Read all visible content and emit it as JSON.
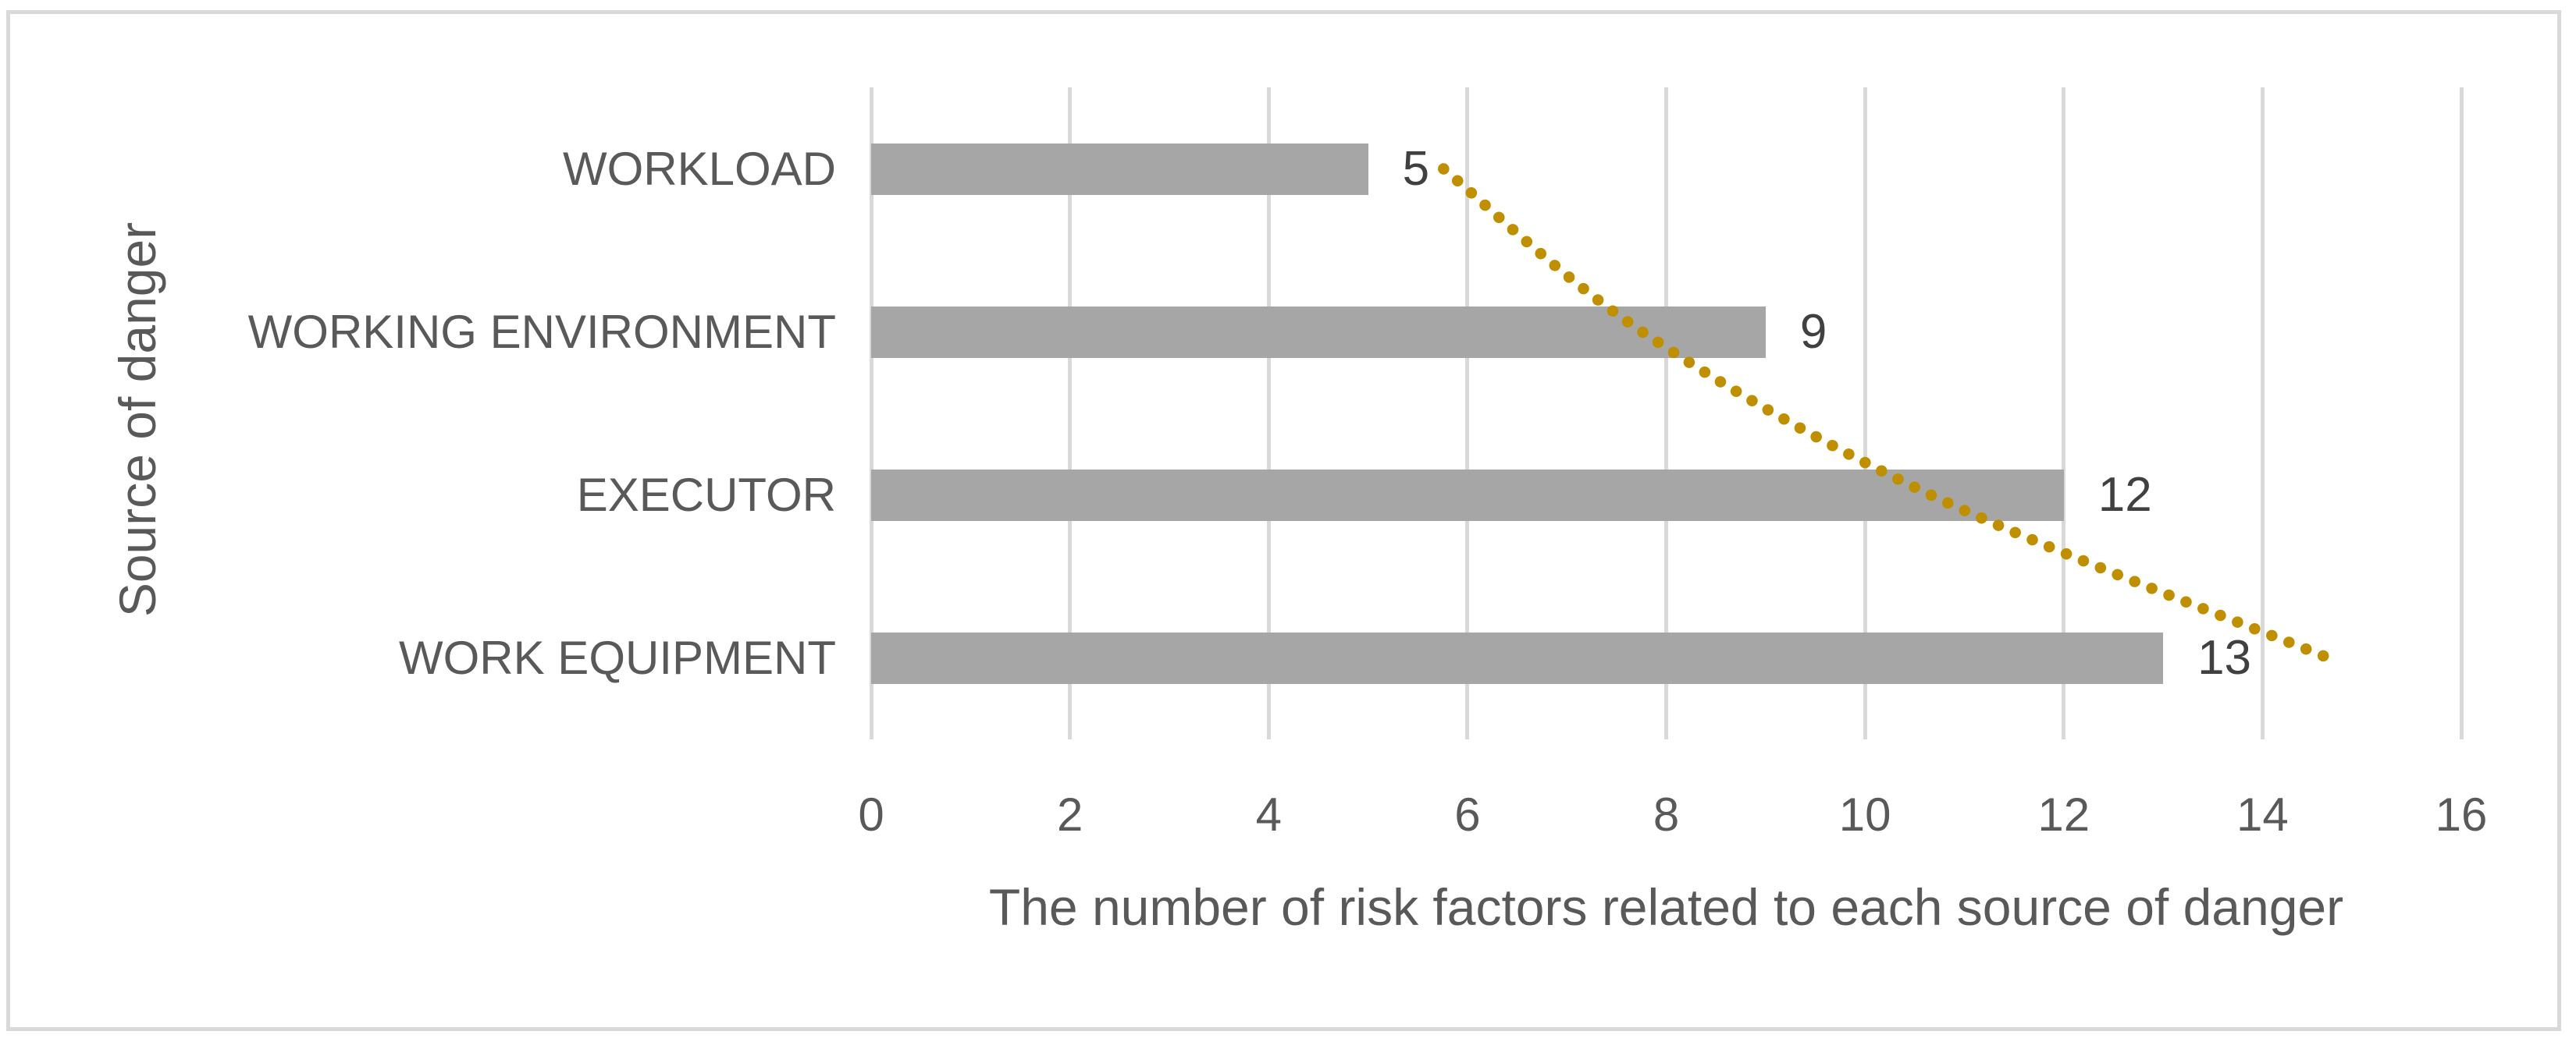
{
  "chart_data": {
    "type": "bar",
    "orientation": "horizontal",
    "title": "",
    "categories": [
      "WORKLOAD",
      "WORKING ENVIRONMENT",
      "EXECUTOR",
      "WORK EQUIPMENT"
    ],
    "values": [
      5,
      9,
      12,
      13
    ],
    "data_labels": [
      "5",
      "9",
      "12",
      "13"
    ],
    "xlabel": "The number of risk factors related to each source of danger",
    "ylabel": "Source of danger",
    "x_ticks": [
      "0",
      "2",
      "4",
      "6",
      "8",
      "10",
      "12",
      "14",
      "16"
    ],
    "x_tick_values": [
      0,
      2,
      4,
      6,
      8,
      10,
      12,
      14,
      16
    ],
    "xlim": [
      0,
      16
    ],
    "grid": true,
    "legend": "none",
    "colors": {
      "bar": "#a6a6a6",
      "gridline": "#d9d9d9",
      "frame_border": "#d9d9d9",
      "axis_text": "#595959",
      "data_label_text": "#404040",
      "trendline": "#bf8f00",
      "background": "#ffffff"
    },
    "trendline": {
      "style": "dotted",
      "color": "#bf8f00",
      "description": "dotted gold trendline descending across the four category rows",
      "values_at_rows": [
        5.76,
        7.76,
        10.66,
        14.66
      ]
    }
  }
}
